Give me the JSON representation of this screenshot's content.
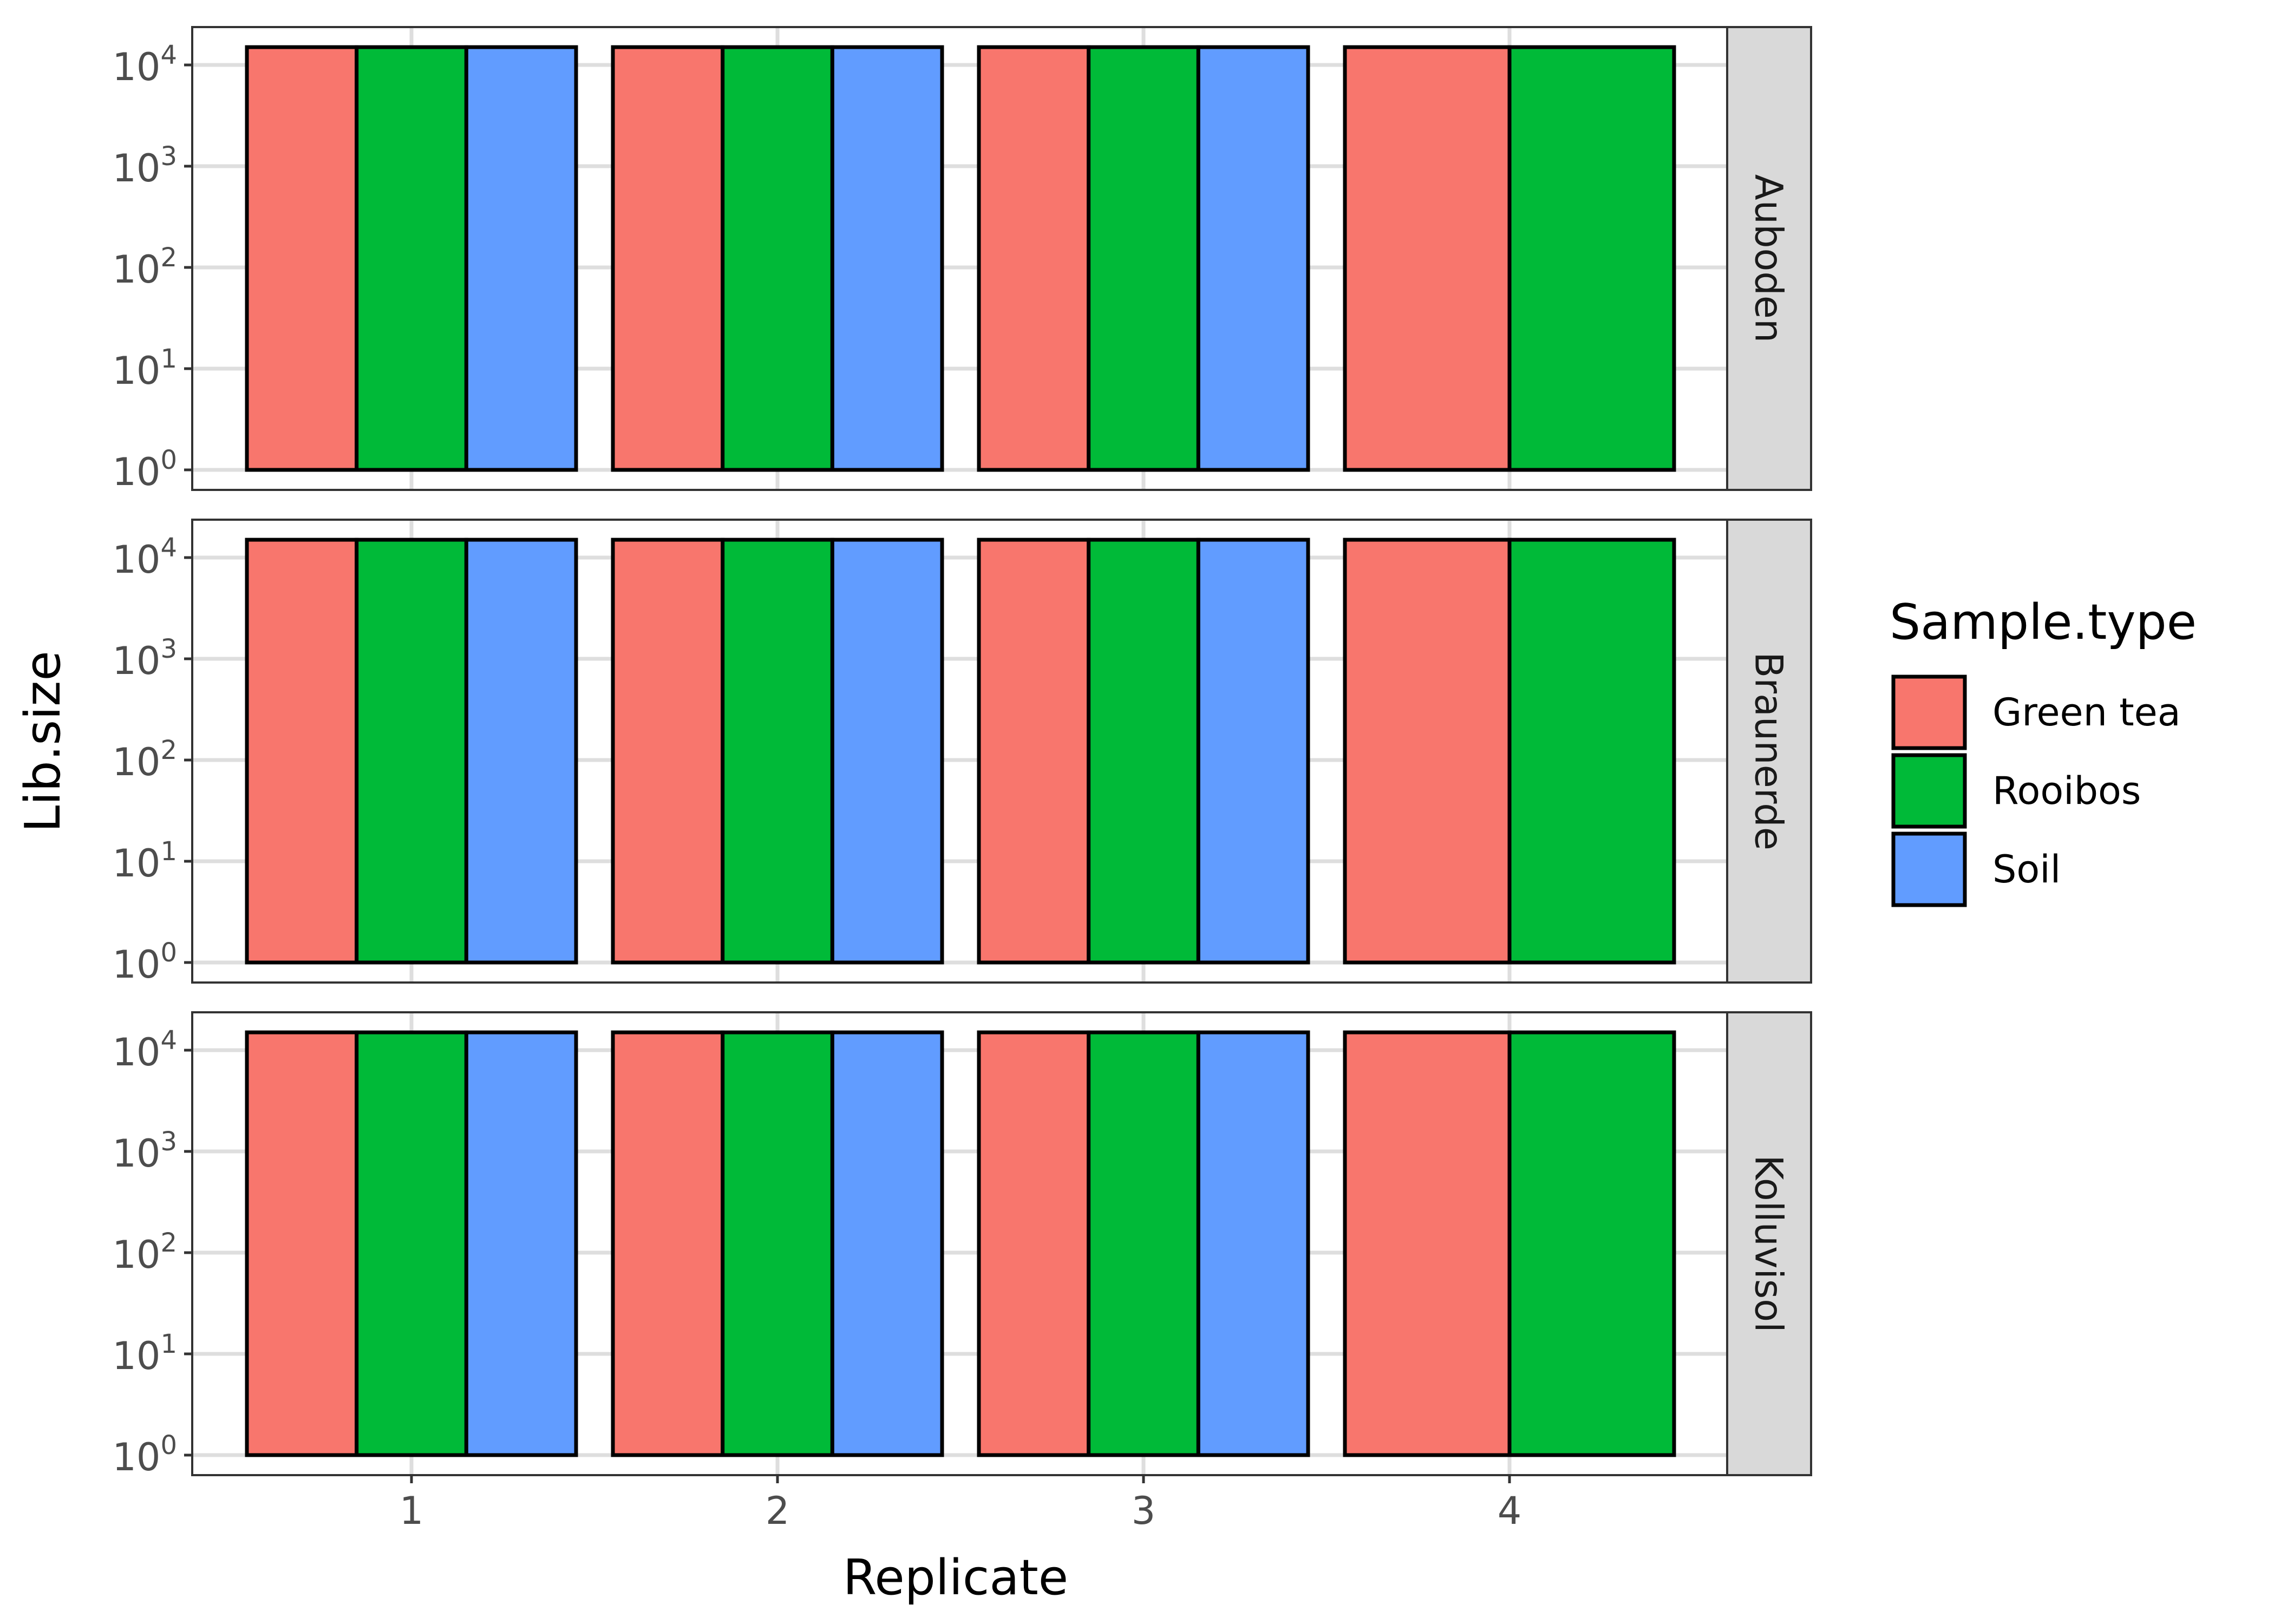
{
  "chart_data": {
    "type": "bar",
    "layout": "faceted rows, dodged bars",
    "xlabel": "Replicate",
    "ylabel": "Lib.size",
    "y_scale": "log10",
    "ylim": [
      1,
      20000
    ],
    "y_ticks": [
      1,
      10,
      100,
      1000,
      10000
    ],
    "y_tick_labels": [
      {
        "base": "10",
        "exp": "0"
      },
      {
        "base": "10",
        "exp": "1"
      },
      {
        "base": "10",
        "exp": "2"
      },
      {
        "base": "10",
        "exp": "3"
      },
      {
        "base": "10",
        "exp": "4"
      }
    ],
    "categories": [
      "1",
      "2",
      "3",
      "4"
    ],
    "grid": true,
    "legend": {
      "title": "Sample.type",
      "placement": "right",
      "entries": [
        {
          "label": "Green tea",
          "color": "#F8766D"
        },
        {
          "label": "Rooibos",
          "color": "#00BA38"
        },
        {
          "label": "Soil",
          "color": "#619CFF"
        }
      ]
    },
    "facets": [
      {
        "label": "Auboden",
        "bars": [
          {
            "replicate": "1",
            "series": [
              "Green tea",
              "Rooibos",
              "Soil"
            ],
            "values": [
              15000,
              15000,
              15000
            ]
          },
          {
            "replicate": "2",
            "series": [
              "Green tea",
              "Rooibos",
              "Soil"
            ],
            "values": [
              15000,
              15000,
              15000
            ]
          },
          {
            "replicate": "3",
            "series": [
              "Green tea",
              "Rooibos",
              "Soil"
            ],
            "values": [
              15000,
              15000,
              15000
            ]
          },
          {
            "replicate": "4",
            "series": [
              "Green tea",
              "Rooibos"
            ],
            "values": [
              15000,
              15000
            ]
          }
        ]
      },
      {
        "label": "Braunerde",
        "bars": [
          {
            "replicate": "1",
            "series": [
              "Green tea",
              "Rooibos",
              "Soil"
            ],
            "values": [
              15000,
              15000,
              15000
            ]
          },
          {
            "replicate": "2",
            "series": [
              "Green tea",
              "Rooibos",
              "Soil"
            ],
            "values": [
              15000,
              15000,
              15000
            ]
          },
          {
            "replicate": "3",
            "series": [
              "Green tea",
              "Rooibos",
              "Soil"
            ],
            "values": [
              15000,
              15000,
              15000
            ]
          },
          {
            "replicate": "4",
            "series": [
              "Green tea",
              "Rooibos"
            ],
            "values": [
              15000,
              15000
            ]
          }
        ]
      },
      {
        "label": "Kolluvisol",
        "bars": [
          {
            "replicate": "1",
            "series": [
              "Green tea",
              "Rooibos",
              "Soil"
            ],
            "values": [
              15000,
              15000,
              15000
            ]
          },
          {
            "replicate": "2",
            "series": [
              "Green tea",
              "Rooibos",
              "Soil"
            ],
            "values": [
              15000,
              15000,
              15000
            ]
          },
          {
            "replicate": "3",
            "series": [
              "Green tea",
              "Rooibos",
              "Soil"
            ],
            "values": [
              15000,
              15000,
              15000
            ]
          },
          {
            "replicate": "4",
            "series": [
              "Green tea",
              "Rooibos"
            ],
            "values": [
              15000,
              15000
            ]
          }
        ]
      }
    ]
  }
}
